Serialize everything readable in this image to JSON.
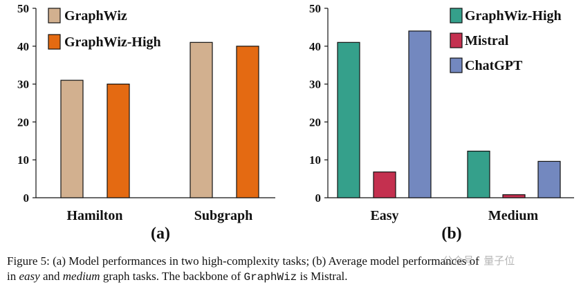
{
  "chart_data": [
    {
      "type": "bar",
      "panel_label": "(a)",
      "categories": [
        "Hamilton",
        "Subgraph"
      ],
      "series": [
        {
          "name": "GraphWiz",
          "values": [
            31,
            41
          ],
          "color": "#d2b08f"
        },
        {
          "name": "GraphWiz-High",
          "values": [
            30,
            40
          ],
          "color": "#e46a12"
        }
      ],
      "yticks": [
        0,
        10,
        20,
        30,
        40,
        50
      ],
      "ylim": [
        0,
        50
      ],
      "legend_position": "top-left"
    },
    {
      "type": "bar",
      "panel_label": "(b)",
      "categories": [
        "Easy",
        "Medium"
      ],
      "series": [
        {
          "name": "GraphWiz-High",
          "values": [
            41,
            12.3
          ],
          "color": "#35a08b"
        },
        {
          "name": "Mistral",
          "values": [
            6.8,
            0.8
          ],
          "color": "#c4304f"
        },
        {
          "name": "ChatGPT",
          "values": [
            44,
            9.6
          ],
          "color": "#7388bf"
        }
      ],
      "yticks": [
        0,
        10,
        20,
        30,
        40,
        50
      ],
      "ylim": [
        0,
        50
      ],
      "legend_position": "top-right"
    }
  ],
  "caption": {
    "line1": "Figure 5: (a) Model performances in two high-complexity tasks; (b) Average model performances of",
    "line2_a": "in ",
    "line2_easy": "easy",
    "line2_b": " and ",
    "line2_medium": "medium",
    "line2_c": " graph tasks. The backbone of ",
    "line2_mono": "GraphWiz",
    "line2_d": " is Mistral."
  },
  "watermark": "公众号 · 量子位"
}
